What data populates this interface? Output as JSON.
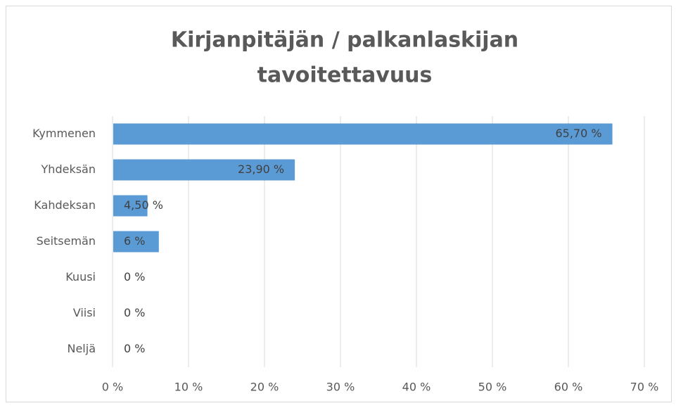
{
  "chart_data": {
    "type": "hbar",
    "title": [
      "Kirjanpitäjän / palkanlaskijan",
      "tavoitettavuus"
    ],
    "categories": [
      "Kymmenen",
      "Yhdeksän",
      "Kahdeksan",
      "Seitsemän",
      "Kuusi",
      "Viisi",
      "Neljä"
    ],
    "values": [
      65.7,
      23.9,
      4.5,
      6,
      0,
      0,
      0
    ],
    "value_labels": [
      "65,70 %",
      "23,90 %",
      "4,50 %",
      "6 %",
      "0 %",
      "0 %",
      "0 %"
    ],
    "color": "#5b9bd5",
    "xlim": [
      0,
      70
    ],
    "xticks": [
      {
        "value": 0,
        "label": "0 %"
      },
      {
        "value": 10,
        "label": "10 %"
      },
      {
        "value": 20,
        "label": "20 %"
      },
      {
        "value": 30,
        "label": "30 %"
      },
      {
        "value": 40,
        "label": "40 %"
      },
      {
        "value": 50,
        "label": "50 %"
      },
      {
        "value": 60,
        "label": "60 %"
      },
      {
        "value": 70,
        "label": "70 %"
      }
    ],
    "grid": true
  }
}
